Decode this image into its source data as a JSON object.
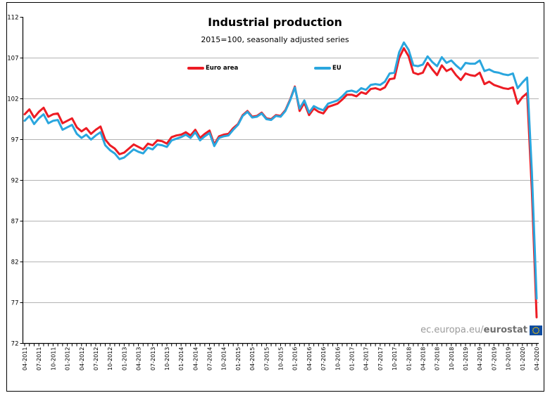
{
  "header": {
    "title": "Industrial production",
    "subtitle": "2015=100, seasonally adjusted series"
  },
  "legend": {
    "items": [
      {
        "label": "Euro area",
        "color": "#ed1c24"
      },
      {
        "label": "EU",
        "color": "#2aa6de"
      }
    ]
  },
  "watermark": {
    "prefix": "ec.europa.eu/",
    "suffix": "eurostat"
  },
  "colors": {
    "euro_area": "#ed1c24",
    "eu": "#2aa6de",
    "gridline": "#b3b3b3",
    "axis": "#000000",
    "eu_flag_blue": "#0e4ca1",
    "eu_flag_stars": "#ffcc00"
  },
  "chart_data": {
    "type": "line",
    "title": "Industrial production",
    "subtitle": "2015=100, seasonally adjusted series",
    "x_frequency": "monthly",
    "x_range": [
      "04-2011",
      "04-2020"
    ],
    "x_tick_labels": [
      "04-2011",
      "07-2011",
      "10-2011",
      "01-2012",
      "04-2012",
      "07-2012",
      "10-2012",
      "01-2013",
      "04-2013",
      "07-2013",
      "10-2013",
      "01-2014",
      "04-2014",
      "07-2014",
      "10-2014",
      "01-2015",
      "04-2015",
      "07-2015",
      "10-2015",
      "01-2016",
      "04-2016",
      "07-2016",
      "10-2016",
      "01-2017",
      "04-2017",
      "07-2017",
      "10-2017",
      "01-2018",
      "04-2018",
      "07-2018",
      "10-2018",
      "01-2019",
      "04-2019",
      "07-2019",
      "10-2019",
      "01-2020",
      "04-2020"
    ],
    "x_tick_every_n_months": 3,
    "y_ticks": [
      72,
      77,
      82,
      87,
      92,
      97,
      102,
      107,
      112
    ],
    "ylim": [
      72,
      112
    ],
    "grid": "horizontal",
    "legend_position": "top-center",
    "series": [
      {
        "name": "Euro area",
        "color": "#ed1c24",
        "values": [
          100.1,
          100.7,
          99.7,
          100.4,
          100.9,
          99.8,
          100.1,
          100.2,
          99.0,
          99.3,
          99.6,
          98.5,
          98.0,
          98.4,
          97.7,
          98.2,
          98.6,
          97.0,
          96.3,
          95.9,
          95.2,
          95.4,
          95.9,
          96.4,
          96.1,
          95.8,
          96.5,
          96.3,
          96.9,
          96.8,
          96.5,
          97.3,
          97.5,
          97.6,
          97.9,
          97.5,
          98.2,
          97.2,
          97.7,
          98.1,
          96.4,
          97.4,
          97.6,
          97.7,
          98.4,
          98.9,
          100.0,
          100.5,
          99.8,
          99.9,
          100.3,
          99.6,
          99.5,
          100.0,
          99.9,
          100.6,
          101.9,
          103.5,
          100.5,
          101.5,
          100.0,
          100.8,
          100.4,
          100.2,
          101.0,
          101.2,
          101.4,
          101.9,
          102.5,
          102.5,
          102.3,
          102.8,
          102.6,
          103.2,
          103.3,
          103.1,
          103.4,
          104.4,
          104.5,
          107.0,
          108.2,
          107.2,
          105.2,
          105.0,
          105.2,
          106.4,
          105.6,
          104.9,
          106.1,
          105.4,
          105.7,
          104.9,
          104.3,
          105.1,
          104.9,
          104.8,
          105.2,
          103.8,
          104.1,
          103.7,
          103.5,
          103.3,
          103.2,
          103.4,
          101.4,
          102.2,
          102.7,
          90.7,
          75.2
        ]
      },
      {
        "name": "EU",
        "color": "#2aa6de",
        "values": [
          99.3,
          99.9,
          98.9,
          99.6,
          100.1,
          99.0,
          99.3,
          99.4,
          98.2,
          98.5,
          98.8,
          97.7,
          97.2,
          97.6,
          97.0,
          97.5,
          97.9,
          96.3,
          95.7,
          95.3,
          94.6,
          94.8,
          95.3,
          95.8,
          95.5,
          95.3,
          96.0,
          95.8,
          96.4,
          96.3,
          96.1,
          96.9,
          97.1,
          97.3,
          97.6,
          97.2,
          97.9,
          96.9,
          97.4,
          97.8,
          96.2,
          97.2,
          97.4,
          97.5,
          98.2,
          98.8,
          99.9,
          100.4,
          99.7,
          99.8,
          100.2,
          99.5,
          99.4,
          99.9,
          99.8,
          100.5,
          101.8,
          103.4,
          100.8,
          101.8,
          100.3,
          101.1,
          100.8,
          100.6,
          101.4,
          101.6,
          101.8,
          102.3,
          102.9,
          103.0,
          102.8,
          103.3,
          103.1,
          103.7,
          103.8,
          103.7,
          104.1,
          105.1,
          105.2,
          107.7,
          108.9,
          108.0,
          106.1,
          106.0,
          106.2,
          107.2,
          106.5,
          106.0,
          107.1,
          106.4,
          106.7,
          106.1,
          105.6,
          106.4,
          106.3,
          106.3,
          106.7,
          105.4,
          105.6,
          105.3,
          105.2,
          105.0,
          104.9,
          105.1,
          103.3,
          104.0,
          104.6,
          93.0,
          77.5
        ]
      }
    ]
  }
}
